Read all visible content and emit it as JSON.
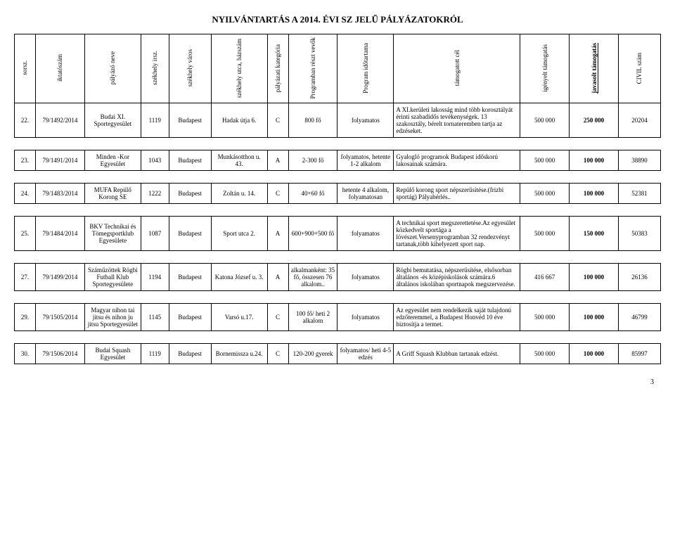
{
  "title": "NYILVÁNTARTÁS A 2014. ÉVI SZ JELŰ PÁLYÁZATOKRÓL",
  "page_number": "3",
  "headers": {
    "sorsz": "sorsz.",
    "iktatoszam": "iktatószám",
    "palyazo_neve": "pályázó neve",
    "irsz": "székhely   irsz.",
    "varos": "székhely   város",
    "utca": "székhely   utca, házszám",
    "kategoria": "pályázati kategória",
    "resztvevo": "Programban részt vevők",
    "idotartam": "Program időtartama",
    "cel": "támogatott cél",
    "igenyelt": "igényelt támogatás",
    "javasolt": "javasolt támogatás",
    "civil": "CIVIL   szám"
  },
  "rows": [
    {
      "sorsz": "22.",
      "iktatoszam": "79/1492/2014",
      "nev": "Budai XI. Sportegyesület",
      "irsz": "1119",
      "varos": "Budapest",
      "utca": "Hadak útja 6.",
      "kat": "C",
      "resztv": "800 fő",
      "idotart": "folyamatos",
      "cel": "A XI.kerületi lakosság mind több korosztályát érinti szabadidős tevékenységek. 13 szakosztály, bérelt tornateremben tartja az edzéseket.",
      "igeny": "500 000",
      "javas": "250 000",
      "civil": "20204"
    },
    {
      "sorsz": "23.",
      "iktatoszam": "79/1491/2014",
      "nev": "Minden -Kor Egyesület",
      "irsz": "1043",
      "varos": "Budapest",
      "utca": "Munkásotthon u. 43.",
      "kat": "A",
      "resztv": "2-300 fő",
      "idotart": "folyamatos, hetente 1-2 alkalom",
      "cel": "Gyalogló programok Budapest időskorú lakosainak számára.",
      "igeny": "500 000",
      "javas": "100 000",
      "civil": "38890"
    },
    {
      "sorsz": "24.",
      "iktatoszam": "79/1483/2014",
      "nev": "MUFA Repülő Korong SE",
      "irsz": "1222",
      "varos": "Budapest",
      "utca": "Zoltán u. 14.",
      "kat": "C",
      "resztv": "40+60 fő",
      "idotart": "hetente 4 alkalom, folyamatosan",
      "cel": "Repülő korong sport népszerűsítése.(frizbi sportág) Pályabérlés..",
      "igeny": "500 000",
      "javas": "100 000",
      "civil": "52381"
    },
    {
      "sorsz": "25.",
      "iktatoszam": "79/1484/2014",
      "nev": "BKV Technikai és Tömegsportklub Egyesülete",
      "irsz": "1087",
      "varos": "Budapest",
      "utca": "Sport utca 2.",
      "kat": "A",
      "resztv": "600+900+500 fő",
      "idotart": "folyamatos",
      "cel": "A technikai sport megszerettetése.Az egyesület közkedvelt sportága a lövészet.Versenyprogramban 32 rendezvényt tartanak,több kihelyezett sport nap.",
      "igeny": "500 000",
      "javas": "150 000",
      "civil": "50383"
    },
    {
      "sorsz": "27.",
      "iktatoszam": "79/1499/2014",
      "nev": "Száműzöttek Rögbi Futball Klub Sportegyesülete",
      "irsz": "1194",
      "varos": "Budapest",
      "utca": "Katona József u. 3.",
      "kat": "A",
      "resztv": "alkalmanként: 35 fő, összesen 76 alkalom..",
      "idotart": "folyamatos",
      "cel": "Rögbi bemutatása, népszerűsítése, elsősorban általános -és középiskolások számára.6 általános iskolában sportnapok megszervezése.",
      "igeny": "416 667",
      "javas": "100 000",
      "civil": "26136"
    },
    {
      "sorsz": "29.",
      "iktatoszam": "79/1505/2014",
      "nev": "Magyar nihon tai jitsu és nihon ju jitsu Sportegyesület",
      "irsz": "1145",
      "varos": "Budapest",
      "utca": "Varsó u.17.",
      "kat": "C",
      "resztv": "100 fő/ heti 2 alkalom",
      "idotart": "folyamatos",
      "cel": "Az egyesület nem rendelkezik saját tulajdonú edzőteremmel, a Budapest Honvéd 10 éve biztosítja a termet.",
      "igeny": "500 000",
      "javas": "100 000",
      "civil": "46799"
    },
    {
      "sorsz": "30.",
      "iktatoszam": "79/1506/2014",
      "nev": "Budai Squash Egyesület",
      "irsz": "1119",
      "varos": "Budapest",
      "utca": "Bornemissza u.24.",
      "kat": "C",
      "resztv": "120-200 gyerek",
      "idotart": "folyamatos/ heti 4-5 edzés",
      "cel": "A Griff Squash Klubban tartanak edzést.",
      "igeny": "500 000",
      "javas": "100 000",
      "civil": "85997"
    }
  ],
  "style": {
    "font_family": "Times New Roman, serif",
    "background_color": "#ffffff",
    "text_color": "#000000",
    "border_color": "#000000",
    "title_fontsize": 13,
    "cell_fontsize": 9
  }
}
